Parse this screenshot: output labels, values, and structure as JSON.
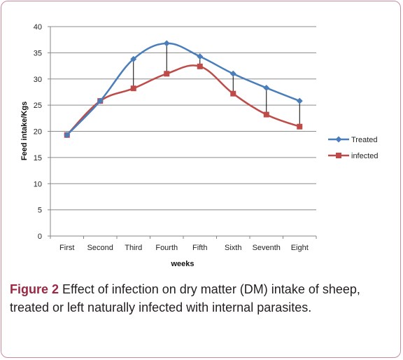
{
  "caption": {
    "label": "Figure 2",
    "text": " Effect of infection on dry matter (DM) intake of sheep, treated or left naturally infected with internal parasites."
  },
  "chart_data": {
    "type": "line",
    "categories": [
      "First",
      "Second",
      "Third",
      "Fourth",
      "Fifth",
      "Sixth",
      "Seventh",
      "Eight"
    ],
    "series": [
      {
        "name": "Treated",
        "color": "#4a7ebb",
        "marker": "diamond",
        "values": [
          19.3,
          25.8,
          33.8,
          36.8,
          34.3,
          31.0,
          28.3,
          25.8
        ]
      },
      {
        "name": "infected",
        "color": "#be4b48",
        "marker": "square",
        "values": [
          19.3,
          25.8,
          28.2,
          31.0,
          32.4,
          27.2,
          23.2,
          20.9
        ]
      }
    ],
    "xlabel": "weeks",
    "ylabel": "Feed intake/Kgs",
    "ylim": [
      0,
      40
    ],
    "yticks": [
      0,
      5,
      10,
      15,
      20,
      25,
      30,
      35,
      40
    ],
    "grid": true,
    "legend": "right",
    "drop_lines": true
  }
}
